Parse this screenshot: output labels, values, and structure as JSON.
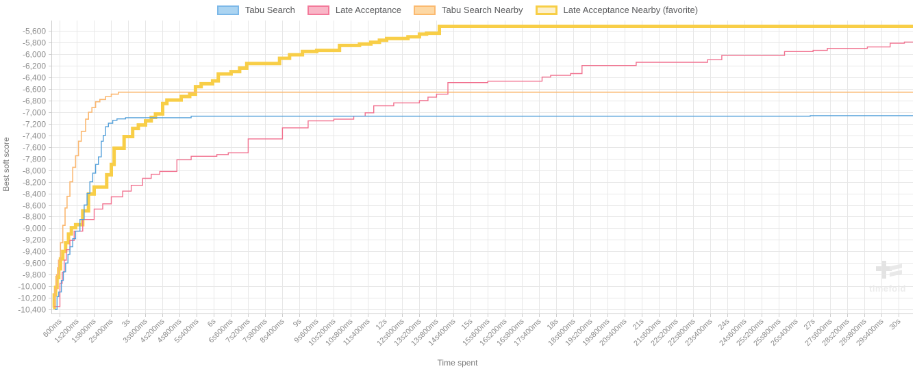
{
  "legend": {
    "items": [
      {
        "label": "Tabu Search",
        "swatch_fill": "#abd4f1",
        "swatch_border": "#7cb8e8",
        "border_width": 2
      },
      {
        "label": "Late Acceptance",
        "swatch_fill": "#f9b6c7",
        "swatch_border": "#f3799a",
        "border_width": 2
      },
      {
        "label": "Tabu Search Nearby",
        "swatch_fill": "#fdd8a4",
        "swatch_border": "#fbb96f",
        "border_width": 2
      },
      {
        "label": "Late Acceptance Nearby (favorite)",
        "swatch_fill": "#fcf0cc",
        "swatch_border": "#f7ce46",
        "border_width": 3
      }
    ]
  },
  "chart_data": {
    "type": "line",
    "step": true,
    "title": "",
    "xlabel": "Time spent",
    "ylabel": "Best soft score",
    "legend_position": "top",
    "grid": true,
    "x_domain": [
      0.3,
      30.5
    ],
    "y_domain": [
      -10470,
      -5420
    ],
    "x_tick_interval_s": 0.6,
    "x_tick_labels": [
      "600ms",
      "1s200ms",
      "1s800ms",
      "2s400ms",
      "3s",
      "3s600ms",
      "4s200ms",
      "4s800ms",
      "5s400ms",
      "6s",
      "6s600ms",
      "7s200ms",
      "7s800ms",
      "8s400ms",
      "9s",
      "9s600ms",
      "10s200ms",
      "10s800ms",
      "11s400ms",
      "12s",
      "12s600ms",
      "13s200ms",
      "13s800ms",
      "14s400ms",
      "15s",
      "15s600ms",
      "16s200ms",
      "16s800ms",
      "17s400ms",
      "18s",
      "18s600ms",
      "19s200ms",
      "19s800ms",
      "20s400ms",
      "21s",
      "21s600ms",
      "22s200ms",
      "22s800ms",
      "23s400ms",
      "24s",
      "24s600ms",
      "25s200ms",
      "25s800ms",
      "26s400ms",
      "27s",
      "27s600ms",
      "28s200ms",
      "28s800ms",
      "29s400ms",
      "30s"
    ],
    "y_ticks": [
      -5600,
      -5800,
      -6000,
      -6200,
      -6400,
      -6600,
      -6800,
      -7000,
      -7200,
      -7400,
      -7600,
      -7800,
      -8000,
      -8200,
      -8400,
      -8600,
      -8800,
      -9000,
      -9200,
      -9400,
      -9600,
      -9800,
      -10000,
      -10200,
      -10400
    ],
    "y_tick_labels": [
      "-5,600",
      "-5,800",
      "-6,000",
      "-6,200",
      "-6,400",
      "-6,600",
      "-6,800",
      "-7,000",
      "-7,200",
      "-7,400",
      "-7,600",
      "-7,800",
      "-8,000",
      "-8,200",
      "-8,400",
      "-8,600",
      "-8,800",
      "-9,000",
      "-9,200",
      "-9,400",
      "-9,600",
      "-9,800",
      "-10,000",
      "-10,200",
      "-10,400"
    ],
    "colors": {
      "grid": "#e7e7e7",
      "axis": "#cdcdcd",
      "tick_text": "#8b8b8b"
    },
    "draw_order": [
      3,
      2,
      1,
      0
    ],
    "series": [
      {
        "name": "Tabu Search",
        "slug": "tabu-search",
        "color": "#54a0da",
        "line_width": 1.4,
        "points": [
          [
            0.42,
            -10400
          ],
          [
            0.5,
            -10180
          ],
          [
            0.56,
            -10100
          ],
          [
            0.65,
            -9900
          ],
          [
            0.72,
            -9750
          ],
          [
            0.8,
            -9600
          ],
          [
            0.88,
            -9450
          ],
          [
            0.95,
            -9320
          ],
          [
            1.05,
            -9180
          ],
          [
            1.15,
            -9050
          ],
          [
            1.3,
            -8850
          ],
          [
            1.45,
            -8600
          ],
          [
            1.55,
            -8400
          ],
          [
            1.65,
            -8200
          ],
          [
            1.75,
            -8050
          ],
          [
            1.85,
            -7900
          ],
          [
            1.95,
            -7770
          ],
          [
            2.05,
            -7500
          ],
          [
            2.12,
            -7400
          ],
          [
            2.2,
            -7250
          ],
          [
            2.3,
            -7190
          ],
          [
            2.45,
            -7140
          ],
          [
            2.6,
            -7115
          ],
          [
            2.9,
            -7095
          ],
          [
            5.2,
            -7070
          ],
          [
            26.9,
            -7060
          ]
        ]
      },
      {
        "name": "Late Acceptance",
        "slug": "late-acceptance",
        "color": "#f1718f",
        "line_width": 1.4,
        "points": [
          [
            0.4,
            -10350
          ],
          [
            0.6,
            -9950
          ],
          [
            0.68,
            -9760
          ],
          [
            0.75,
            -9550
          ],
          [
            0.82,
            -9370
          ],
          [
            0.95,
            -9210
          ],
          [
            1.1,
            -9050
          ],
          [
            1.4,
            -8850
          ],
          [
            1.8,
            -8670
          ],
          [
            2.1,
            -8580
          ],
          [
            2.4,
            -8460
          ],
          [
            2.8,
            -8360
          ],
          [
            3.1,
            -8260
          ],
          [
            3.5,
            -8140
          ],
          [
            3.8,
            -8070
          ],
          [
            4.1,
            -8020
          ],
          [
            4.7,
            -7820
          ],
          [
            5.2,
            -7760
          ],
          [
            6.1,
            -7730
          ],
          [
            6.5,
            -7700
          ],
          [
            7.2,
            -7460
          ],
          [
            8.4,
            -7270
          ],
          [
            9.3,
            -7150
          ],
          [
            10.2,
            -7120
          ],
          [
            10.9,
            -7070
          ],
          [
            11.3,
            -7010
          ],
          [
            11.6,
            -6890
          ],
          [
            12.3,
            -6840
          ],
          [
            13.2,
            -6800
          ],
          [
            13.5,
            -6740
          ],
          [
            13.8,
            -6690
          ],
          [
            14.2,
            -6490
          ],
          [
            15.6,
            -6465
          ],
          [
            17.5,
            -6395
          ],
          [
            17.8,
            -6365
          ],
          [
            18.5,
            -6335
          ],
          [
            18.9,
            -6195
          ],
          [
            20.8,
            -6140
          ],
          [
            23.3,
            -6095
          ],
          [
            23.8,
            -6020
          ],
          [
            26.0,
            -5955
          ],
          [
            27.0,
            -5935
          ],
          [
            27.5,
            -5900
          ],
          [
            28.9,
            -5875
          ],
          [
            29.7,
            -5810
          ],
          [
            30.2,
            -5790
          ]
        ]
      },
      {
        "name": "Tabu Search Nearby",
        "slug": "tabu-search-nearby",
        "color": "#fbb871",
        "line_width": 1.6,
        "points": [
          [
            0.37,
            -10320
          ],
          [
            0.42,
            -10050
          ],
          [
            0.48,
            -9800
          ],
          [
            0.55,
            -9550
          ],
          [
            0.62,
            -9250
          ],
          [
            0.7,
            -8950
          ],
          [
            0.78,
            -8650
          ],
          [
            0.85,
            -8450
          ],
          [
            0.95,
            -8200
          ],
          [
            1.05,
            -7950
          ],
          [
            1.15,
            -7750
          ],
          [
            1.25,
            -7500
          ],
          [
            1.35,
            -7330
          ],
          [
            1.5,
            -7120
          ],
          [
            1.6,
            -7000
          ],
          [
            1.72,
            -6920
          ],
          [
            1.85,
            -6820
          ],
          [
            2.0,
            -6780
          ],
          [
            2.2,
            -6730
          ],
          [
            2.4,
            -6690
          ],
          [
            2.65,
            -6655
          ]
        ]
      },
      {
        "name": "Late Acceptance Nearby (favorite)",
        "slug": "late-acceptance-nearby",
        "color": "#f8ce47",
        "line_width": 5,
        "points": [
          [
            0.36,
            -10370
          ],
          [
            0.4,
            -10150
          ],
          [
            0.45,
            -10020
          ],
          [
            0.5,
            -9850
          ],
          [
            0.56,
            -9700
          ],
          [
            0.62,
            -9530
          ],
          [
            0.7,
            -9400
          ],
          [
            0.8,
            -9250
          ],
          [
            0.9,
            -9100
          ],
          [
            1.0,
            -8990
          ],
          [
            1.15,
            -8940
          ],
          [
            1.4,
            -8700
          ],
          [
            1.6,
            -8410
          ],
          [
            1.8,
            -8290
          ],
          [
            2.24,
            -8080
          ],
          [
            2.4,
            -7900
          ],
          [
            2.5,
            -7620
          ],
          [
            2.85,
            -7420
          ],
          [
            3.15,
            -7280
          ],
          [
            3.35,
            -7220
          ],
          [
            3.6,
            -7150
          ],
          [
            3.8,
            -7090
          ],
          [
            3.95,
            -7030
          ],
          [
            4.2,
            -6850
          ],
          [
            4.35,
            -6790
          ],
          [
            4.85,
            -6730
          ],
          [
            5.15,
            -6690
          ],
          [
            5.35,
            -6560
          ],
          [
            5.55,
            -6510
          ],
          [
            5.95,
            -6460
          ],
          [
            6.15,
            -6340
          ],
          [
            6.6,
            -6300
          ],
          [
            6.9,
            -6240
          ],
          [
            7.15,
            -6160
          ],
          [
            8.3,
            -6070
          ],
          [
            8.65,
            -6010
          ],
          [
            9.1,
            -5955
          ],
          [
            9.6,
            -5935
          ],
          [
            10.4,
            -5850
          ],
          [
            11.1,
            -5825
          ],
          [
            11.5,
            -5795
          ],
          [
            11.8,
            -5760
          ],
          [
            12.05,
            -5730
          ],
          [
            12.8,
            -5700
          ],
          [
            13.2,
            -5655
          ],
          [
            13.45,
            -5640
          ],
          [
            13.9,
            -5520
          ]
        ]
      }
    ]
  },
  "watermark": {
    "brand": "timefold"
  }
}
